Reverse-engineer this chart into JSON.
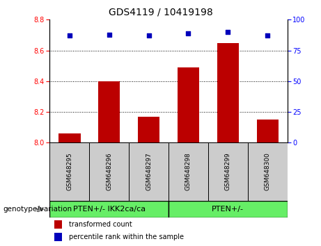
{
  "title": "GDS4119 / 10419198",
  "samples": [
    "GSM648295",
    "GSM648296",
    "GSM648297",
    "GSM648298",
    "GSM648299",
    "GSM648300"
  ],
  "bar_values": [
    8.06,
    8.4,
    8.17,
    8.49,
    8.65,
    8.15
  ],
  "percentile_values": [
    87,
    88,
    87,
    89,
    90,
    87
  ],
  "ylim_left": [
    8.0,
    8.8
  ],
  "ylim_right": [
    0,
    100
  ],
  "yticks_left": [
    8.0,
    8.2,
    8.4,
    8.6,
    8.8
  ],
  "yticks_right": [
    0,
    25,
    50,
    75,
    100
  ],
  "bar_color": "#bb0000",
  "dot_color": "#0000bb",
  "group1_label": "PTEN+/- IKK2ca/ca",
  "group2_label": "PTEN+/-",
  "group1_indices": [
    0,
    1,
    2
  ],
  "group2_indices": [
    3,
    4,
    5
  ],
  "group_color": "#66ee66",
  "sample_box_color": "#cccccc",
  "legend_bar_label": "transformed count",
  "legend_dot_label": "percentile rank within the sample",
  "genotype_label": "genotype/variation",
  "grid_lines": [
    8.2,
    8.4,
    8.6
  ],
  "title_fontsize": 10,
  "tick_fontsize": 7,
  "sample_fontsize": 6.5,
  "group_fontsize": 8,
  "legend_fontsize": 7,
  "genotype_fontsize": 7.5
}
